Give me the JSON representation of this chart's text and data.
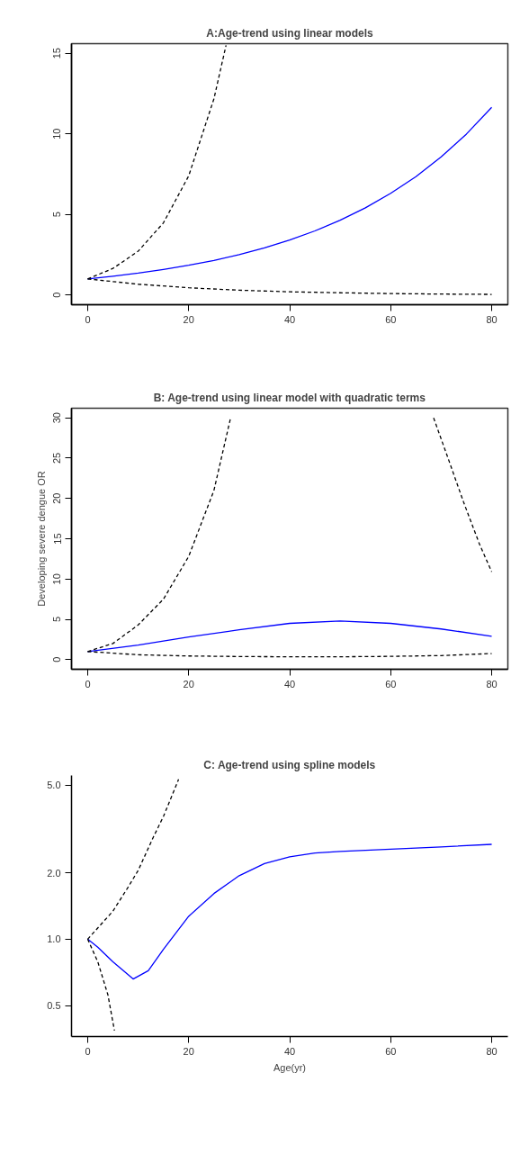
{
  "chart_data": [
    {
      "type": "line",
      "title": "A:Age-trend using linear models",
      "xlim": [
        -3.2,
        83.2
      ],
      "ylim": [
        -0.6,
        15.6
      ],
      "xticks": [
        0,
        20,
        40,
        60,
        80
      ],
      "yticks": [
        0,
        5,
        10,
        15
      ],
      "series": [
        {
          "color": "#0000ff",
          "line_style": "solid",
          "x": [
            0,
            5,
            10,
            15,
            20,
            25,
            30,
            35,
            40,
            45,
            50,
            55,
            60,
            65,
            70,
            75,
            80
          ],
          "values": [
            1,
            1.17,
            1.36,
            1.59,
            1.85,
            2.15,
            2.51,
            2.93,
            3.41,
            3.98,
            4.64,
            5.41,
            6.31,
            7.35,
            8.57,
            9.99,
            11.65
          ]
        },
        {
          "color": "#000000",
          "line_style": "dashed",
          "x": [
            0,
            5,
            10,
            15,
            20,
            25,
            27.4
          ],
          "values": [
            1,
            1.65,
            2.72,
            4.48,
            7.39,
            12.18,
            15.5
          ]
        },
        {
          "color": "#000000",
          "line_style": "dashed",
          "x": [
            0,
            10,
            20,
            30,
            40,
            50,
            60,
            70,
            80
          ],
          "values": [
            1,
            0.67,
            0.45,
            0.3,
            0.2,
            0.14,
            0.09,
            0.06,
            0.04
          ]
        }
      ]
    },
    {
      "type": "line",
      "title": "B: Age-trend using linear model with quadratic terms",
      "ylabel": "Developing severe dengue OR",
      "xlim": [
        -3.2,
        83.2
      ],
      "ylim": [
        -1.2,
        31.2
      ],
      "xticks": [
        0,
        20,
        40,
        60,
        80
      ],
      "yticks": [
        0,
        5,
        10,
        15,
        20,
        25,
        30
      ],
      "series": [
        {
          "color": "#0000ff",
          "line_style": "solid",
          "x": [
            0,
            10,
            20,
            30,
            40,
            50,
            60,
            70,
            80
          ],
          "values": [
            1,
            1.8,
            2.8,
            3.7,
            4.5,
            4.8,
            4.5,
            3.8,
            2.9
          ]
        },
        {
          "color": "#000000",
          "line_style": "dashed",
          "x": [
            0,
            5,
            10,
            15,
            20,
            25,
            28.3
          ],
          "values": [
            1,
            2,
            4.3,
            7.5,
            12.8,
            21,
            30
          ]
        },
        {
          "color": "#000000",
          "line_style": "dashed",
          "x": [
            68.5,
            71.3,
            74.4,
            77.6,
            80
          ],
          "values": [
            30,
            25.1,
            19.6,
            14.3,
            10.9
          ]
        },
        {
          "color": "#000000",
          "line_style": "dashed",
          "x": [
            0,
            10,
            20,
            30,
            40,
            50,
            60,
            70,
            80
          ],
          "values": [
            1,
            0.6,
            0.45,
            0.38,
            0.35,
            0.35,
            0.4,
            0.5,
            0.75
          ]
        }
      ]
    },
    {
      "type": "line",
      "title": "C: Age-trend using spline models",
      "xlabel": "Age(yr)",
      "log": "y",
      "xlim": [
        -3.2,
        83.2
      ],
      "ylim": [
        0.362,
        5.52
      ],
      "xticks": [
        0,
        20,
        40,
        60,
        80
      ],
      "yticks": [
        0.5,
        {
          "value": 1,
          "label": "1.0"
        },
        {
          "value": 2,
          "label": "2.0"
        },
        {
          "value": 5,
          "label": "5.0"
        }
      ],
      "series": [
        {
          "color": "#0000ff",
          "line_style": "solid",
          "x": [
            0,
            2,
            5,
            9,
            12,
            15,
            20,
            25,
            30,
            35,
            40,
            45,
            50,
            60,
            70,
            80
          ],
          "values": [
            1,
            0.92,
            0.79,
            0.66,
            0.72,
            0.9,
            1.27,
            1.61,
            1.94,
            2.2,
            2.36,
            2.46,
            2.5,
            2.56,
            2.62,
            2.69
          ]
        },
        {
          "color": "#000000",
          "line_style": "dashed",
          "x": [
            0,
            5,
            8,
            10,
            13,
            15,
            18
          ],
          "values": [
            1,
            1.34,
            1.72,
            2.05,
            2.9,
            3.6,
            5.3
          ]
        },
        {
          "color": "#000000",
          "line_style": "dashed",
          "x": [
            0,
            2,
            4,
            5.3
          ],
          "values": [
            1,
            0.79,
            0.56,
            0.385
          ]
        }
      ]
    }
  ]
}
